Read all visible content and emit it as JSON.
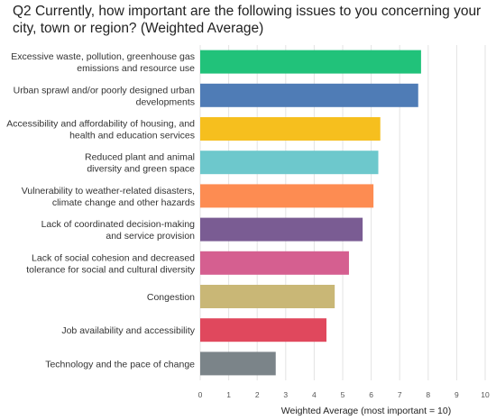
{
  "chart_data": {
    "type": "bar",
    "orientation": "horizontal",
    "title": "Q2 Currently, how important are the following issues to you concerning your city, town or region? (Weighted Average)",
    "xlabel": "Weighted Average (most important = 10)",
    "ylabel": "",
    "xlim": [
      0,
      10
    ],
    "ticks": [
      0,
      1,
      2,
      3,
      4,
      5,
      6,
      7,
      8,
      9,
      10
    ],
    "grid": true,
    "legend": "none",
    "categories": [
      [
        "Excessive waste, pollution, greenhouse gas",
        "emissions and resource use"
      ],
      [
        "Urban sprawl and/or poorly designed urban",
        "developments"
      ],
      [
        "Accessibility and affordability of housing, and",
        "health and education services"
      ],
      [
        "Reduced plant and animal",
        "diversity and green space"
      ],
      [
        "Vulnerability to weather-related disasters,",
        "climate change and other hazards"
      ],
      [
        "Lack of coordinated decision-making",
        "and service provision"
      ],
      [
        "Lack of social cohesion and decreased",
        "tolerance for social and cultural diversity"
      ],
      [
        "Congestion"
      ],
      [
        "Job availability and accessibility"
      ],
      [
        "Technology and the pace of change"
      ]
    ],
    "values": [
      7.75,
      7.65,
      6.32,
      6.25,
      6.08,
      5.7,
      5.22,
      4.72,
      4.43,
      2.65
    ],
    "colors": [
      "#21c27a",
      "#4f7cb6",
      "#f6bf1e",
      "#6dc8cc",
      "#fd8c52",
      "#7a5c93",
      "#d55f90",
      "#c9b776",
      "#e0485d",
      "#7b8489"
    ]
  }
}
